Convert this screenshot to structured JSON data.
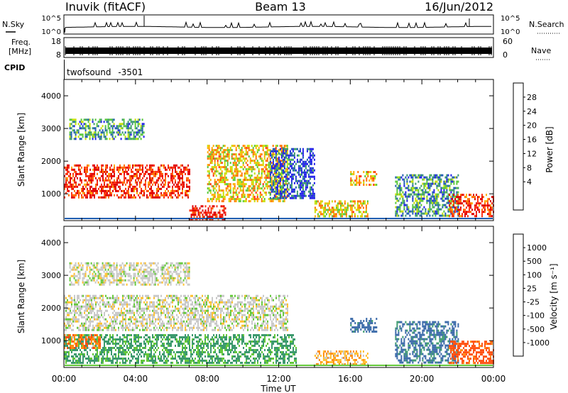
{
  "header": {
    "station": "Inuvik (fitACF)",
    "beam": "Beam 13",
    "date": "16/Jun/2012"
  },
  "noise_panel": {
    "left_label": "N.Sky",
    "right_label": "N.Search",
    "ticks": [
      "10^5",
      "10^0"
    ]
  },
  "freq_panel": {
    "left_label_line1": "Freq.",
    "left_label_line2": "[MHz]",
    "left_ticks": [
      "18",
      "8"
    ],
    "right_ticks": [
      "60",
      "0"
    ],
    "right_label": "Nave"
  },
  "cpid_panel": {
    "label": "CPID",
    "program": "twofsound",
    "cpid_value": "-3501"
  },
  "chart_data": [
    {
      "type": "heatmap",
      "name": "power",
      "ylabel": "Slant Range [km]",
      "ylim": [
        180,
        4500
      ],
      "yticks": [
        1000,
        2000,
        3000,
        4000
      ],
      "xlabel": "Time UT",
      "xlim_hours": [
        0,
        24
      ],
      "xtick_labels": [
        "00:00",
        "04:00",
        "08:00",
        "12:00",
        "16:00",
        "20:00",
        "00:00"
      ],
      "colorbar": {
        "label": "Power [dB]",
        "labels": [
          "28",
          "24",
          "20",
          "16",
          "12",
          "8",
          "4"
        ],
        "colors": [
          "#e00000",
          "#ff3010",
          "#ff7000",
          "#ffae00",
          "#c8e000",
          "#58c838",
          "#3c9a6e",
          "#1f5db0",
          "#2020e8"
        ]
      },
      "echo_regions": [
        {
          "t0": 0.0,
          "t1": 7.0,
          "r0": 900,
          "r1": 1900,
          "level": 26
        },
        {
          "t0": 0.3,
          "t1": 4.5,
          "r0": 2700,
          "r1": 3300,
          "level": 10
        },
        {
          "t0": 7.0,
          "t1": 9.0,
          "r0": 250,
          "r1": 650,
          "level": 28
        },
        {
          "t0": 8.0,
          "t1": 12.5,
          "r0": 800,
          "r1": 2500,
          "level": 18
        },
        {
          "t0": 11.5,
          "t1": 14.0,
          "r0": 900,
          "r1": 2400,
          "level": 6
        },
        {
          "t0": 14.0,
          "t1": 17.0,
          "r0": 300,
          "r1": 800,
          "level": 18
        },
        {
          "t0": 16.0,
          "t1": 17.5,
          "r0": 1250,
          "r1": 1700,
          "level": 20
        },
        {
          "t0": 18.5,
          "t1": 22.0,
          "r0": 300,
          "r1": 1600,
          "level": 10
        },
        {
          "t0": 21.5,
          "t1": 24.0,
          "r0": 300,
          "r1": 1000,
          "level": 26
        }
      ]
    },
    {
      "type": "heatmap",
      "name": "velocity",
      "ylabel": "Slant Range [km]",
      "ylim": [
        180,
        4500
      ],
      "yticks": [
        1000,
        2000,
        3000,
        4000
      ],
      "xlabel": "Time UT",
      "xlim_hours": [
        0,
        24
      ],
      "xtick_labels": [
        "00:00",
        "04:00",
        "08:00",
        "12:00",
        "16:00",
        "20:00",
        "00:00"
      ],
      "colorbar": {
        "label": "Velocity [m s⁻¹]",
        "labels": [
          "1000",
          "500",
          "100",
          "25",
          "-25",
          "-100",
          "-500",
          "-1000"
        ],
        "colors": [
          "#2040c8",
          "#3868a8",
          "#3c9a6e",
          "#64c83a",
          "#c8c8c8",
          "#ffc030",
          "#ff8c10",
          "#ff5010",
          "#e00000"
        ]
      },
      "echo_regions": [
        {
          "t0": 0.0,
          "t1": 12.5,
          "r0": 1300,
          "r1": 2400,
          "level": 0
        },
        {
          "t0": 0.3,
          "t1": 7.0,
          "r0": 2700,
          "r1": 3400,
          "level": 0
        },
        {
          "t0": 0.0,
          "t1": 13.0,
          "r0": 300,
          "r1": 1200,
          "level": 80
        },
        {
          "t0": 0.0,
          "t1": 2.0,
          "r0": 800,
          "r1": 1200,
          "level": -200
        },
        {
          "t0": 14.0,
          "t1": 17.0,
          "r0": 300,
          "r1": 700,
          "level": -50
        },
        {
          "t0": 16.0,
          "t1": 17.5,
          "r0": 1300,
          "r1": 1700,
          "level": 500
        },
        {
          "t0": 18.5,
          "t1": 22.0,
          "r0": 300,
          "r1": 1600,
          "level": 400
        },
        {
          "t0": 21.5,
          "t1": 24.0,
          "r0": 300,
          "r1": 1000,
          "level": -500
        }
      ]
    }
  ],
  "colors": {
    "frame": "#000000",
    "background": "#ffffff"
  }
}
